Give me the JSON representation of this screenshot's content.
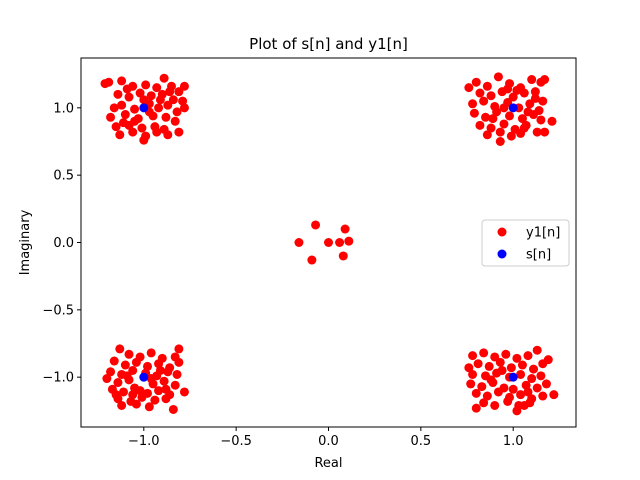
{
  "chart_data": {
    "type": "scatter",
    "title": "Plot of s[n] and y1[n]",
    "xlabel": "Real",
    "ylabel": "Imaginary",
    "xlim": [
      -1.34,
      1.34
    ],
    "ylim": [
      -1.37,
      1.37
    ],
    "xticks": [
      -1.0,
      -0.5,
      0.0,
      0.5,
      1.0
    ],
    "yticks": [
      -1.0,
      -0.5,
      0.0,
      0.5,
      1.0
    ],
    "xtick_labels": [
      "−1.0",
      "−0.5",
      "0.0",
      "0.5",
      "1.0"
    ],
    "ytick_labels": [
      "−1.0",
      "−0.5",
      "0.0",
      "0.5",
      "1.0"
    ],
    "legend_position": "center-right",
    "series": [
      {
        "name": "y1[n]",
        "color": "#ff0000",
        "points": [
          [
            -1.21,
            1.18
          ],
          [
            -1.19,
            1.19
          ],
          [
            -1.12,
            1.2
          ],
          [
            -1.06,
            1.16
          ],
          [
            -0.99,
            1.17
          ],
          [
            -0.93,
            1.15
          ],
          [
            -0.89,
            1.22
          ],
          [
            -0.85,
            1.16
          ],
          [
            -0.81,
            1.12
          ],
          [
            -0.78,
            1.16
          ],
          [
            -1.14,
            1.1
          ],
          [
            -1.08,
            1.08
          ],
          [
            -1.02,
            1.11
          ],
          [
            -0.96,
            1.09
          ],
          [
            -0.9,
            1.1
          ],
          [
            -0.84,
            1.06
          ],
          [
            -0.79,
            1.05
          ],
          [
            -1.16,
            1.0
          ],
          [
            -1.12,
            1.02
          ],
          [
            -1.05,
            0.99
          ],
          [
            -0.97,
            1.03
          ],
          [
            -0.92,
            1.0
          ],
          [
            -0.87,
            1.02
          ],
          [
            -0.82,
            0.97
          ],
          [
            -0.78,
            1.0
          ],
          [
            -1.18,
            0.93
          ],
          [
            -1.1,
            0.95
          ],
          [
            -1.03,
            0.92
          ],
          [
            -0.95,
            0.94
          ],
          [
            -0.88,
            0.93
          ],
          [
            -0.83,
            0.9
          ],
          [
            -1.15,
            0.86
          ],
          [
            -1.08,
            0.87
          ],
          [
            -1.01,
            0.85
          ],
          [
            -0.94,
            0.86
          ],
          [
            -0.89,
            0.84
          ],
          [
            -0.81,
            0.82
          ],
          [
            -1.13,
            0.8
          ],
          [
            -1.06,
            0.82
          ],
          [
            -0.99,
            0.79
          ],
          [
            -0.93,
            0.82
          ],
          [
            -0.87,
            0.8
          ],
          [
            -1.0,
            0.76
          ],
          [
            -1.05,
            0.9
          ],
          [
            -0.97,
            0.97
          ],
          [
            -1.09,
            1.14
          ],
          [
            -0.86,
            1.12
          ],
          [
            -1.0,
            1.06
          ],
          [
            -1.11,
            0.89
          ],
          [
            -0.91,
            1.06
          ],
          [
            0.76,
            1.15
          ],
          [
            0.8,
            1.19
          ],
          [
            0.86,
            1.16
          ],
          [
            0.92,
            1.23
          ],
          [
            0.98,
            1.18
          ],
          [
            1.04,
            1.15
          ],
          [
            1.1,
            1.21
          ],
          [
            1.15,
            1.19
          ],
          [
            1.17,
            1.21
          ],
          [
            0.82,
            1.11
          ],
          [
            0.88,
            1.09
          ],
          [
            0.94,
            1.12
          ],
          [
            1.0,
            1.08
          ],
          [
            1.06,
            1.11
          ],
          [
            1.12,
            1.07
          ],
          [
            1.16,
            1.05
          ],
          [
            0.78,
            1.03
          ],
          [
            0.84,
            1.05
          ],
          [
            0.9,
            1.01
          ],
          [
            0.97,
            1.04
          ],
          [
            1.03,
            1.0
          ],
          [
            1.09,
            1.03
          ],
          [
            1.14,
            0.98
          ],
          [
            0.79,
            0.96
          ],
          [
            0.85,
            0.93
          ],
          [
            0.91,
            0.97
          ],
          [
            0.98,
            0.94
          ],
          [
            1.05,
            0.92
          ],
          [
            1.11,
            0.95
          ],
          [
            1.15,
            0.91
          ],
          [
            1.21,
            0.9
          ],
          [
            0.82,
            0.87
          ],
          [
            0.88,
            0.85
          ],
          [
            0.95,
            0.88
          ],
          [
            1.01,
            0.84
          ],
          [
            1.07,
            0.87
          ],
          [
            1.13,
            0.82
          ],
          [
            1.17,
            0.82
          ],
          [
            0.86,
            0.8
          ],
          [
            0.93,
            0.82
          ],
          [
            0.99,
            0.79
          ],
          [
            1.04,
            0.81
          ],
          [
            0.93,
            0.75
          ],
          [
            0.97,
            1.14
          ],
          [
            1.08,
            0.97
          ],
          [
            0.89,
            0.92
          ],
          [
            1.02,
            1.13
          ],
          [
            1.12,
            1.12
          ],
          [
            0.95,
            1.0
          ],
          [
            1.06,
            0.85
          ],
          [
            -1.13,
            -0.79
          ],
          [
            -1.08,
            -0.83
          ],
          [
            -1.02,
            -0.85
          ],
          [
            -0.96,
            -0.82
          ],
          [
            -0.9,
            -0.86
          ],
          [
            -0.83,
            -0.85
          ],
          [
            -0.81,
            -0.79
          ],
          [
            -1.16,
            -0.88
          ],
          [
            -1.1,
            -0.91
          ],
          [
            -1.04,
            -0.89
          ],
          [
            -0.98,
            -0.92
          ],
          [
            -0.92,
            -0.9
          ],
          [
            -0.86,
            -0.93
          ],
          [
            -0.81,
            -0.89
          ],
          [
            -1.18,
            -0.96
          ],
          [
            -1.12,
            -0.98
          ],
          [
            -1.06,
            -0.95
          ],
          [
            -0.99,
            -0.97
          ],
          [
            -0.93,
            -0.99
          ],
          [
            -0.87,
            -0.96
          ],
          [
            -0.82,
            -0.98
          ],
          [
            -1.2,
            -1.01
          ],
          [
            -1.14,
            -1.04
          ],
          [
            -1.08,
            -1.02
          ],
          [
            -0.95,
            -1.05
          ],
          [
            -0.89,
            -1.03
          ],
          [
            -0.83,
            -1.06
          ],
          [
            -1.17,
            -1.09
          ],
          [
            -1.11,
            -1.11
          ],
          [
            -1.05,
            -1.08
          ],
          [
            -0.98,
            -1.12
          ],
          [
            -0.92,
            -1.1
          ],
          [
            -0.86,
            -1.13
          ],
          [
            -0.78,
            -1.11
          ],
          [
            -1.14,
            -1.16
          ],
          [
            -1.07,
            -1.18
          ],
          [
            -1.01,
            -1.15
          ],
          [
            -0.94,
            -1.17
          ],
          [
            -0.88,
            -1.16
          ],
          [
            -1.12,
            -1.21
          ],
          [
            -1.04,
            -1.2
          ],
          [
            -0.97,
            -1.22
          ],
          [
            -0.84,
            -1.24
          ],
          [
            -1.09,
            -0.99
          ],
          [
            -1.02,
            -1.1
          ],
          [
            -0.91,
            -0.95
          ],
          [
            -1.15,
            -1.13
          ],
          [
            -0.96,
            -1.01
          ],
          [
            -1.06,
            -1.13
          ],
          [
            -0.88,
            -1.09
          ],
          [
            0.78,
            -0.84
          ],
          [
            0.84,
            -0.82
          ],
          [
            0.9,
            -0.85
          ],
          [
            0.96,
            -0.83
          ],
          [
            1.02,
            -0.86
          ],
          [
            1.08,
            -0.84
          ],
          [
            1.13,
            -0.8
          ],
          [
            1.19,
            -0.87
          ],
          [
            0.76,
            -0.93
          ],
          [
            0.81,
            -0.9
          ],
          [
            0.87,
            -0.92
          ],
          [
            0.93,
            -0.89
          ],
          [
            0.99,
            -0.93
          ],
          [
            1.05,
            -0.91
          ],
          [
            1.11,
            -0.94
          ],
          [
            1.16,
            -0.9
          ],
          [
            0.78,
            -0.98
          ],
          [
            0.85,
            -0.99
          ],
          [
            0.91,
            -0.97
          ],
          [
            0.98,
            -1.0
          ],
          [
            1.04,
            -0.98
          ],
          [
            1.1,
            -1.01
          ],
          [
            1.15,
            -0.99
          ],
          [
            0.77,
            -1.05
          ],
          [
            0.83,
            -1.07
          ],
          [
            0.89,
            -1.04
          ],
          [
            0.95,
            -1.08
          ],
          [
            1.07,
            -1.06
          ],
          [
            1.13,
            -1.08
          ],
          [
            1.18,
            -1.05
          ],
          [
            0.8,
            -1.12
          ],
          [
            0.86,
            -1.14
          ],
          [
            0.92,
            -1.11
          ],
          [
            0.98,
            -1.15
          ],
          [
            1.04,
            -1.13
          ],
          [
            1.1,
            -1.16
          ],
          [
            1.16,
            -1.14
          ],
          [
            1.22,
            -1.13
          ],
          [
            0.84,
            -1.19
          ],
          [
            0.9,
            -1.21
          ],
          [
            0.97,
            -1.18
          ],
          [
            1.03,
            -1.21
          ],
          [
            1.09,
            -1.19
          ],
          [
            0.8,
            -1.23
          ],
          [
            1.02,
            -1.25
          ],
          [
            1.06,
            -1.21
          ],
          [
            0.94,
            -0.95
          ],
          [
            1.08,
            -1.11
          ],
          [
            0.88,
            -1.02
          ],
          [
            1.0,
            -1.09
          ]
        ]
      },
      {
        "name": "s[n]",
        "color": "#0000ff",
        "points": [
          [
            -1,
            1
          ],
          [
            1,
            1
          ],
          [
            -1,
            -1
          ],
          [
            1,
            -1
          ]
        ]
      },
      {
        "name": "",
        "color": "#ff0000",
        "legend": false,
        "points": [
          [
            -0.16,
            0.0
          ],
          [
            -0.09,
            -0.13
          ],
          [
            -0.07,
            0.13
          ],
          [
            0.0,
            0.0
          ],
          [
            0.06,
            0.0
          ],
          [
            0.08,
            -0.1
          ],
          [
            0.09,
            0.1
          ],
          [
            0.11,
            0.01
          ]
        ]
      }
    ]
  }
}
